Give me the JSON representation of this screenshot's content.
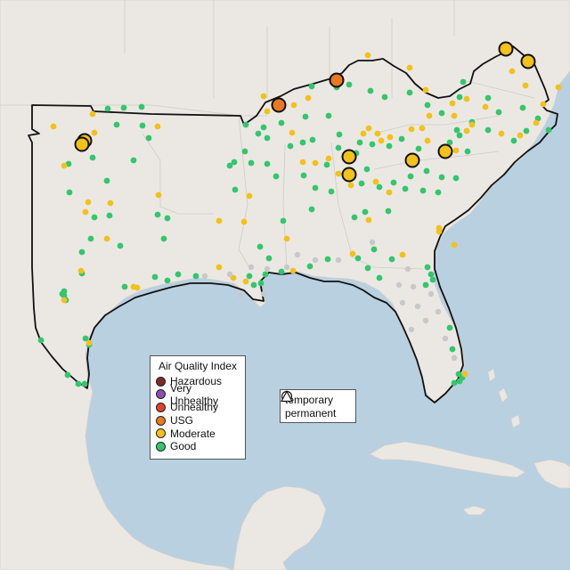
{
  "legend": {
    "title": "Air Quality Index",
    "categories": [
      {
        "label": "Hazardous",
        "color": "#7e2a2a"
      },
      {
        "label": "Very Unhealthy",
        "color": "#8f4fb0"
      },
      {
        "label": "Unhealthy",
        "color": "#e0412a"
      },
      {
        "label": "USG",
        "color": "#e97a22"
      },
      {
        "label": "Moderate",
        "color": "#f2c11a"
      },
      {
        "label": "Good",
        "color": "#33c66d"
      }
    ]
  },
  "site_legend": {
    "temporary_label": "temporary",
    "temporary_icon": "circle-icon",
    "permanent_label": "permanent",
    "permanent_icon": "triangle-icon"
  },
  "colors": {
    "water": "#b8cfe0",
    "land": "#ece9e5",
    "no_data": "#c8c8c8",
    "region_outline": "#111111"
  }
}
